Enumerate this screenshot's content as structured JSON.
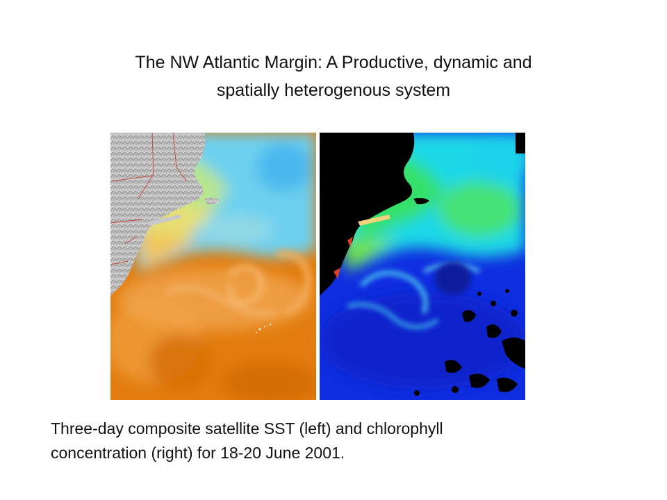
{
  "slide": {
    "title_lines": [
      "The NW Atlantic Margin: A Productive, dynamic and",
      "spatially heterogenous system"
    ],
    "caption_lines": [
      "Three-day composite satellite SST (left) and chlorophyll",
      "concentration (right) for 18-20 June 2001."
    ]
  },
  "images": {
    "sst": {
      "depicts": "sea-surface-temperature-map",
      "colors": {
        "land": "#b5b5b5",
        "coastal_cool": "#e9e27a",
        "offshore_cool": "#6fd3f2",
        "mid_warm": "#f0a14a",
        "warm": "#e07a0c",
        "border_lines": "#c0392b"
      }
    },
    "chlorophyll": {
      "depicts": "chlorophyll-concentration-map",
      "colors": {
        "land": "#000000",
        "coastal_high": "#f2d27a",
        "shelf": "#39e06a",
        "slope": "#18d6e8",
        "open_ocean": "#1030e0",
        "eddy_core": "#0a1a9c"
      }
    }
  }
}
